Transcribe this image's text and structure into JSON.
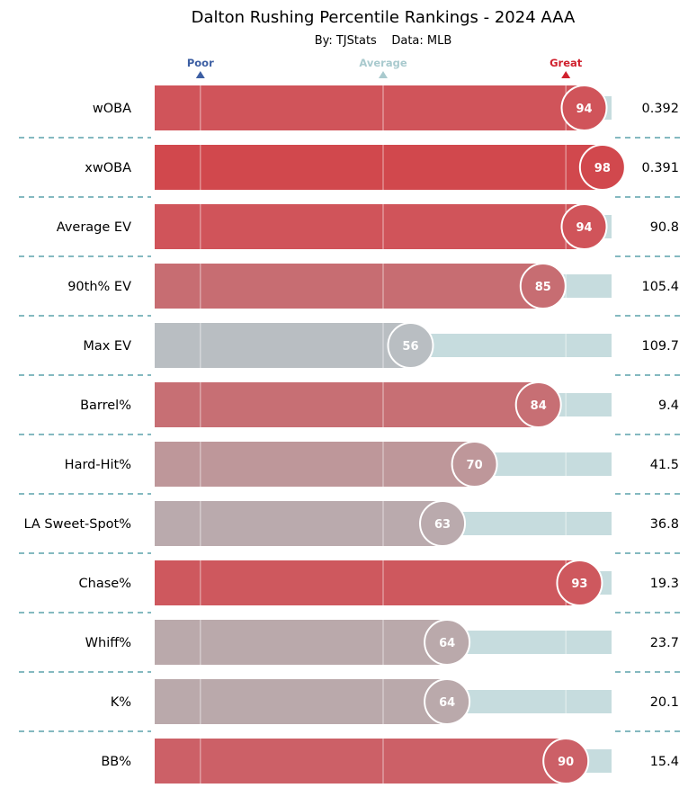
{
  "chart_data": {
    "type": "bar",
    "title": "Dalton Rushing Percentile Rankings - 2024 AAA",
    "subtitle": "By: TJStats    Data: MLB",
    "scale_labels": [
      {
        "text": "Poor",
        "value": 10,
        "color": "#3d5fa3"
      },
      {
        "text": "Average",
        "value": 50,
        "color": "#a9cace"
      },
      {
        "text": "Great",
        "value": 90,
        "color": "#d0212e"
      }
    ],
    "xlim": [
      0,
      100
    ],
    "gridlines": [
      10,
      50,
      90
    ],
    "categories": [
      "wOBA",
      "xwOBA",
      "Average EV",
      "90th% EV",
      "Max EV",
      "Barrel%",
      "Hard-Hit%",
      "LA Sweet-Spot%",
      "Chase%",
      "Whiff%",
      "K%",
      "BB%"
    ],
    "percentiles": [
      94,
      98,
      94,
      85,
      56,
      84,
      70,
      63,
      93,
      64,
      64,
      90
    ],
    "stat_values": [
      "0.392",
      "0.391",
      "90.8",
      "105.4",
      "109.7",
      "9.4",
      "41.5",
      "36.8",
      "19.3",
      "23.7",
      "20.1",
      "15.4"
    ],
    "bar_colors": [
      "#d0545a",
      "#d1484d",
      "#d0545a",
      "#c76d72",
      "#b9bec2",
      "#c76f74",
      "#be979a",
      "#baaaad",
      "#ce585e",
      "#baa9ab",
      "#baa9ab",
      "#cc6067"
    ],
    "track_color": "#c6dcde",
    "separator_color": "#3a8f9a"
  }
}
